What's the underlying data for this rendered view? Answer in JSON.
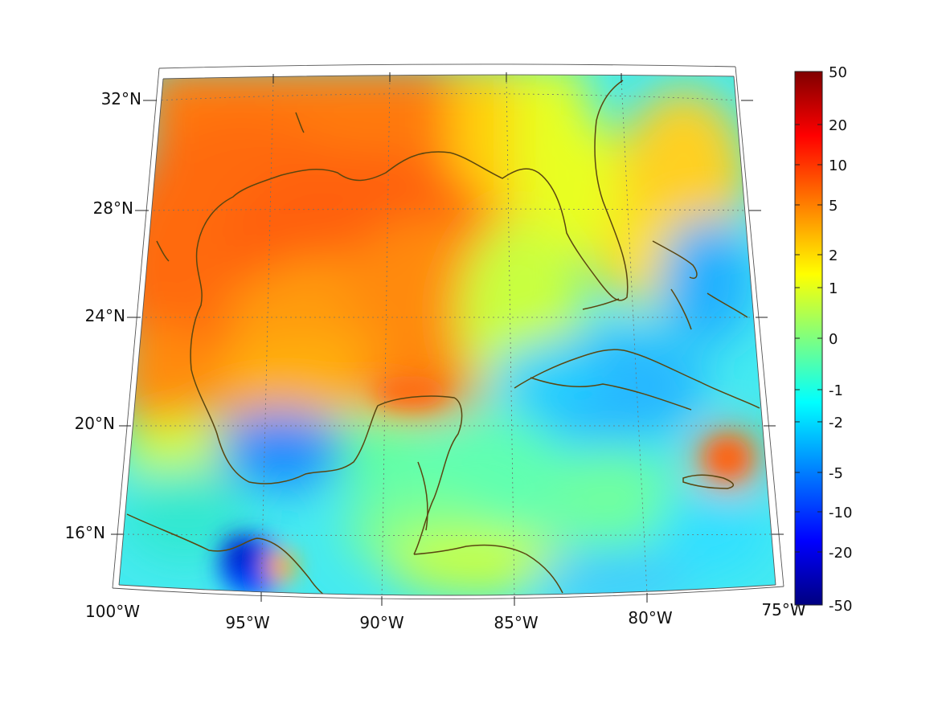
{
  "map": {
    "lon_labels": [
      "100°W",
      "95°W",
      "90°W",
      "85°W",
      "80°W",
      "75°W"
    ],
    "lat_labels": [
      "32°N",
      "28°N",
      "24°N",
      "20°N",
      "16°N"
    ],
    "extent": {
      "lon_min": -100,
      "lon_max": -75,
      "lat_min": 14,
      "lat_max": 33
    },
    "coastline_color": "#5a4610",
    "colormap": "jet"
  },
  "colorbar": {
    "tick_labels": [
      "50",
      "20",
      "10",
      "5",
      "2",
      "1",
      "0",
      "-1",
      "-2",
      "-5",
      "-10",
      "-20",
      "-50"
    ],
    "range": [
      -50,
      50
    ]
  }
}
